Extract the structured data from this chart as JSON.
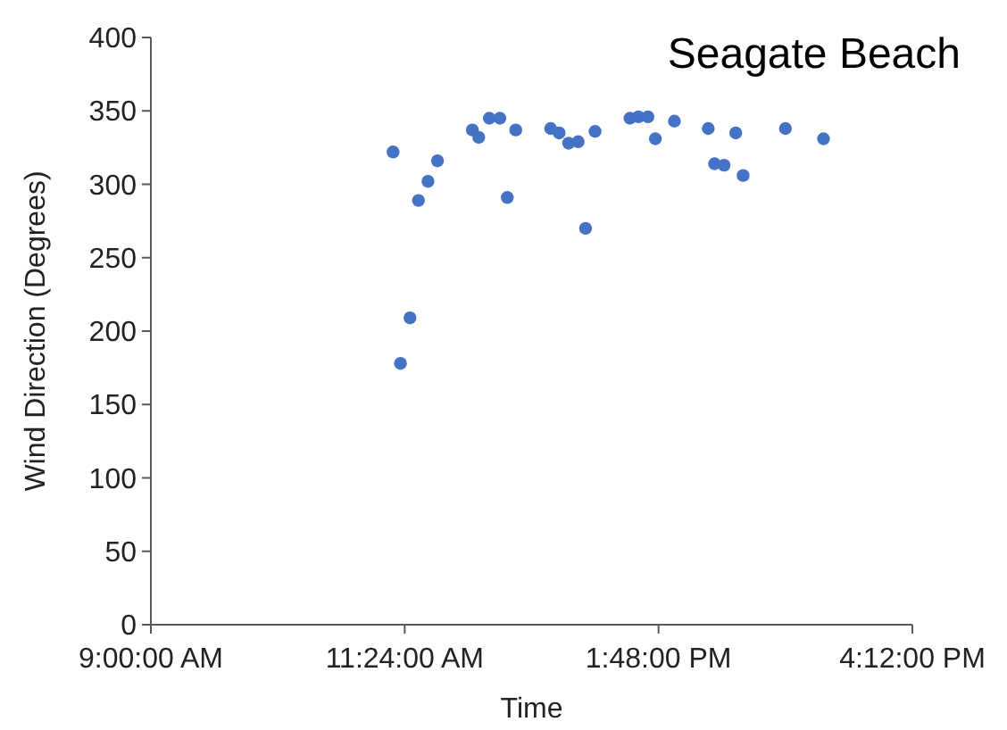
{
  "chart_data": {
    "type": "scatter",
    "title": "Seagate Beach",
    "xlabel": "Time",
    "ylabel": "Wind Direction (Degrees)",
    "xlim": [
      9,
      16.2
    ],
    "xticks": [
      {
        "value": 9,
        "label": "9:00:00 AM"
      },
      {
        "value": 11.4,
        "label": "11:24:00 AM"
      },
      {
        "value": 13.8,
        "label": "1:48:00 PM"
      },
      {
        "value": 16.2,
        "label": "4:12:00 PM"
      }
    ],
    "ylim": [
      0,
      400
    ],
    "yticks": [
      0,
      50,
      100,
      150,
      200,
      250,
      300,
      350,
      400
    ],
    "grid": false,
    "marker": "circle",
    "series": [
      {
        "color": "#4472c4",
        "x": [
          11.29,
          11.36,
          11.45,
          11.53,
          11.62,
          11.71,
          12.04,
          12.1,
          12.2,
          12.3,
          12.37,
          12.45,
          12.78,
          12.86,
          12.95,
          13.04,
          13.11,
          13.2,
          13.53,
          13.61,
          13.7,
          13.77,
          13.95,
          14.27,
          14.33,
          14.42,
          14.53,
          14.6,
          15.0,
          15.36
        ],
        "values": [
          322,
          178,
          209,
          289,
          302,
          316,
          337,
          332,
          345,
          345,
          291,
          337,
          338,
          335,
          328,
          329,
          270,
          336,
          345,
          346,
          346,
          331,
          343,
          338,
          314,
          313,
          335,
          306,
          338,
          331
        ]
      }
    ]
  }
}
